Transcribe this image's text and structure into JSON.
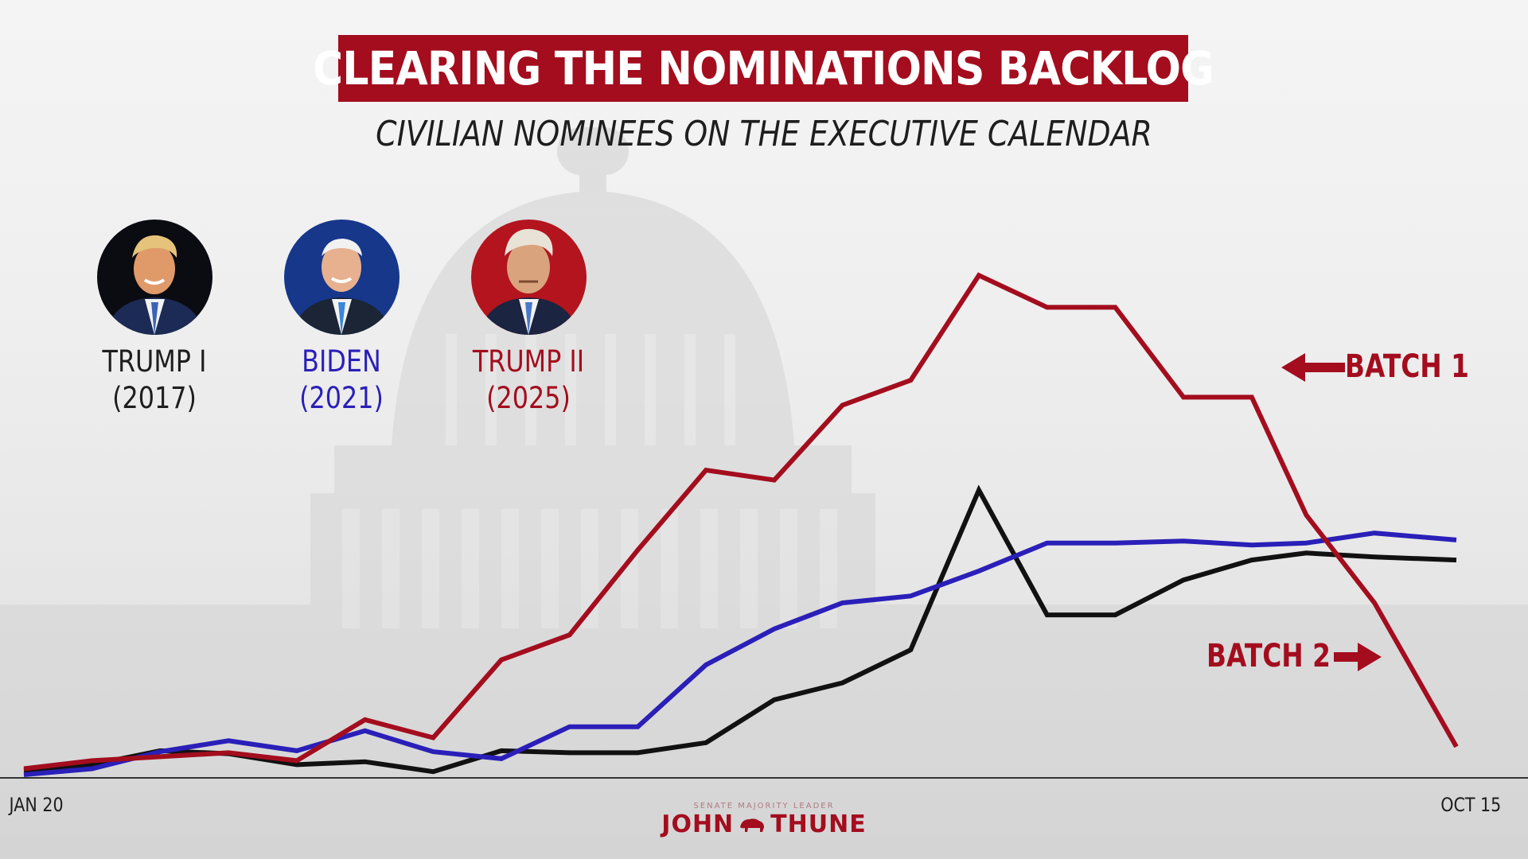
{
  "header": {
    "title": "CLEARING THE NOMINATIONS BACKLOG",
    "subtitle": "CIVILIAN NOMINEES ON THE EXECUTIVE CALENDAR"
  },
  "legend": [
    {
      "name": "TRUMP I",
      "year": "(2017)",
      "color": "#111111",
      "icon": "trump-2017-portrait"
    },
    {
      "name": "BIDEN",
      "year": "(2021)",
      "color": "#2a1fb8",
      "icon": "biden-portrait"
    },
    {
      "name": "TRUMP II",
      "year": "(2025)",
      "color": "#a30d1e",
      "icon": "trump-2025-portrait"
    }
  ],
  "annotations": {
    "batch1": "BATCH 1",
    "batch2": "BATCH 2"
  },
  "x_axis": {
    "start_label": "JAN 20",
    "end_label": "OCT 15"
  },
  "logo": {
    "top_line": "SENATE MAJORITY LEADER",
    "first": "JOHN",
    "last": "THUNE"
  },
  "colors": {
    "accent": "#a30d1e",
    "biden": "#2a1fb8",
    "trump1": "#111111"
  },
  "chart_data": {
    "type": "line",
    "title": "CLEARING THE NOMINATIONS BACKLOG",
    "subtitle": "CIVILIAN NOMINEES ON THE EXECUTIVE CALENDAR",
    "xlabel": "",
    "ylabel": "",
    "ylim": [
      0,
      540
    ],
    "x_range": [
      "JAN 20",
      "OCT 15"
    ],
    "grid": false,
    "legend_position": "top-left",
    "series": [
      {
        "name": "TRUMP II (2025)",
        "color": "#a30d1e",
        "x": [
          0,
          50,
          100,
          150,
          200,
          250,
          300,
          350,
          400,
          450,
          500,
          550,
          600,
          650,
          700,
          750,
          800,
          850,
          900,
          940,
          990,
          1050
        ],
        "y": [
          6,
          14,
          18,
          22,
          14,
          55,
          37,
          115,
          140,
          225,
          305,
          295,
          370,
          395,
          500,
          468,
          468,
          378,
          378,
          260,
          172,
          28
        ]
      },
      {
        "name": "BIDEN (2021)",
        "color": "#2a1fb8",
        "x": [
          0,
          50,
          100,
          150,
          200,
          250,
          300,
          350,
          400,
          450,
          500,
          550,
          600,
          650,
          700,
          750,
          800,
          850,
          900,
          940,
          990,
          1050
        ],
        "y": [
          0,
          6,
          23,
          34,
          24,
          44,
          23,
          16,
          48,
          48,
          110,
          146,
          172,
          179,
          204,
          232,
          232,
          234,
          230,
          232,
          242,
          235
        ]
      },
      {
        "name": "TRUMP I (2017)",
        "color": "#111111",
        "x": [
          0,
          50,
          100,
          150,
          200,
          250,
          300,
          350,
          400,
          450,
          500,
          550,
          600,
          650,
          700,
          750,
          800,
          850,
          900,
          940,
          990,
          1050
        ],
        "y": [
          4,
          10,
          24,
          21,
          10,
          13,
          3,
          24,
          22,
          22,
          32,
          75,
          92,
          125,
          285,
          160,
          160,
          195,
          215,
          222,
          218,
          215
        ]
      }
    ]
  }
}
